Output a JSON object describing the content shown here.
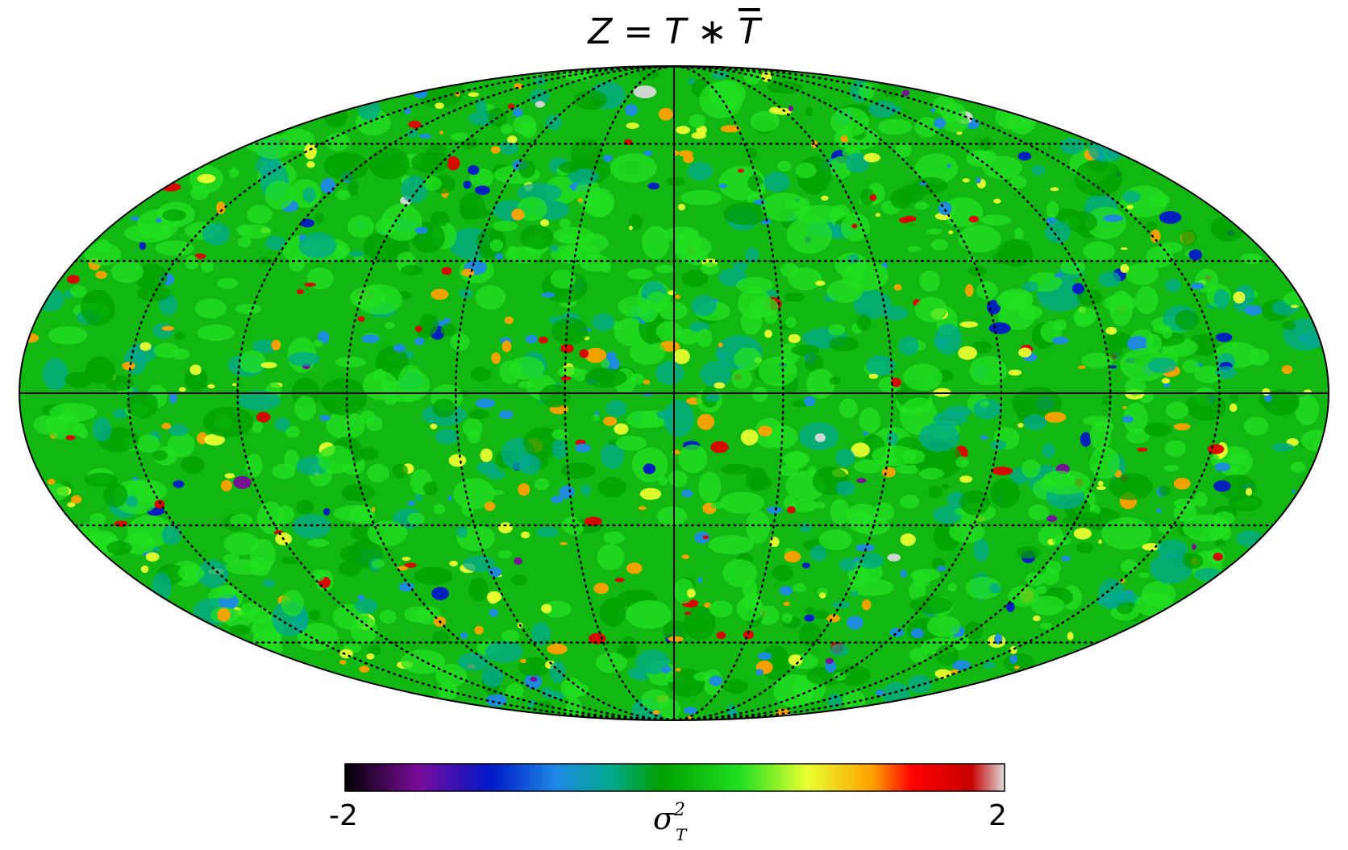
{
  "map": {
    "title_lhs": "Z",
    "title_eq": " = ",
    "title_t1": "T",
    "title_op": " ∗ ",
    "title_t2": "T",
    "projection": "mollweide",
    "graticule": "dotted",
    "palette": [
      "#000000",
      "#7a0b9a",
      "#0018c8",
      "#1e88e6",
      "#00a890",
      "#00a000",
      "#22e022",
      "#e8ff30",
      "#ffa000",
      "#e00000",
      "#c80000",
      "#d8d8d8"
    ]
  },
  "colorbar": {
    "min_label": "-2",
    "max_label": "2",
    "unit_symbol": "σ",
    "unit_sup": "2",
    "unit_sub": "T",
    "range": [
      -2,
      2
    ]
  }
}
